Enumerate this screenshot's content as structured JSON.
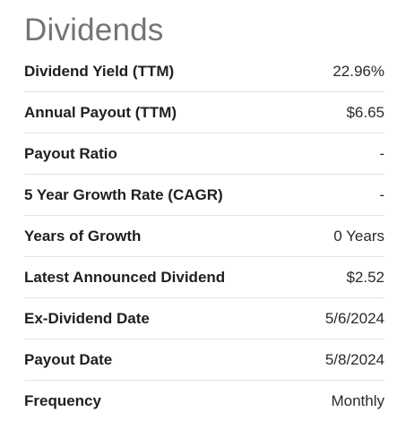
{
  "section": {
    "title": "Dividends"
  },
  "stats": [
    {
      "label": "Dividend Yield (TTM)",
      "value": "22.96%"
    },
    {
      "label": "Annual Payout (TTM)",
      "value": "$6.65"
    },
    {
      "label": "Payout Ratio",
      "value": "-"
    },
    {
      "label": "5 Year Growth Rate (CAGR)",
      "value": "-"
    },
    {
      "label": "Years of Growth",
      "value": "0 Years"
    },
    {
      "label": "Latest Announced Dividend",
      "value": "$2.52"
    },
    {
      "label": "Ex-Dividend Date",
      "value": "5/6/2024"
    },
    {
      "label": "Payout Date",
      "value": "5/8/2024"
    },
    {
      "label": "Frequency",
      "value": "Monthly"
    }
  ]
}
